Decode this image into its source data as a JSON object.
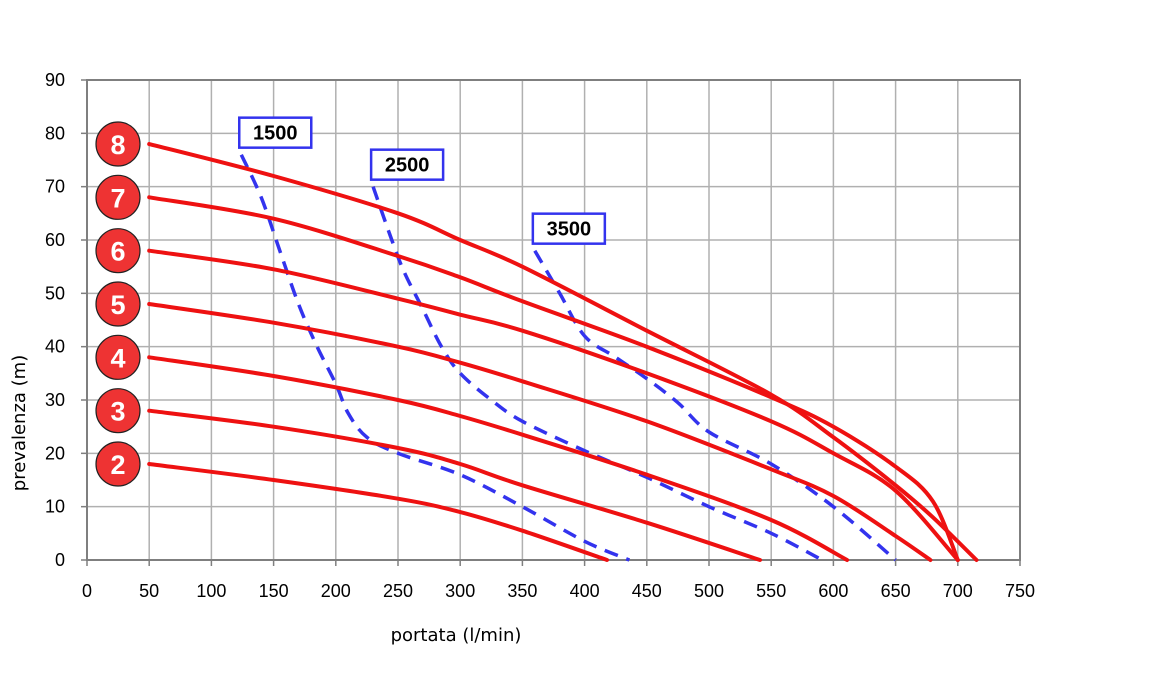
{
  "chart_data": {
    "type": "line",
    "xlabel": "portata (l/min)",
    "ylabel": "prevalenza (m)",
    "xlim": [
      0,
      750
    ],
    "ylim": [
      0,
      90
    ],
    "x_ticks": [
      "0",
      "50",
      "100",
      "150",
      "200",
      "250",
      "300",
      "350",
      "400",
      "450",
      "500",
      "550",
      "600",
      "650",
      "700",
      "750"
    ],
    "y_ticks": [
      "0",
      "10",
      "20",
      "30",
      "40",
      "50",
      "60",
      "70",
      "80",
      "90"
    ],
    "grid": true,
    "colors": {
      "pump_curve": "#ee1111",
      "speed_curve": "#3333ee",
      "badge": "#ee3333"
    },
    "pump_curves": [
      {
        "label": "2",
        "points": [
          [
            50,
            18
          ],
          [
            150,
            15
          ],
          [
            250,
            11.5
          ],
          [
            300,
            9
          ],
          [
            350,
            5.5
          ],
          [
            418,
            0
          ]
        ]
      },
      {
        "label": "3",
        "points": [
          [
            50,
            28
          ],
          [
            150,
            25
          ],
          [
            250,
            21
          ],
          [
            300,
            18
          ],
          [
            350,
            14
          ],
          [
            450,
            7
          ],
          [
            541,
            0
          ]
        ]
      },
      {
        "label": "4",
        "points": [
          [
            50,
            38
          ],
          [
            150,
            34.5
          ],
          [
            250,
            30
          ],
          [
            300,
            27
          ],
          [
            350,
            23.5
          ],
          [
            450,
            16
          ],
          [
            550,
            7.5
          ],
          [
            611,
            0
          ]
        ]
      },
      {
        "label": "5",
        "points": [
          [
            50,
            48
          ],
          [
            150,
            44.5
          ],
          [
            250,
            40
          ],
          [
            300,
            37
          ],
          [
            350,
            33.5
          ],
          [
            450,
            26
          ],
          [
            550,
            17
          ],
          [
            600,
            12
          ],
          [
            650,
            4.5
          ],
          [
            678,
            0
          ]
        ]
      },
      {
        "label": "6",
        "points": [
          [
            50,
            58
          ],
          [
            150,
            54.5
          ],
          [
            250,
            49
          ],
          [
            300,
            46
          ],
          [
            350,
            43
          ],
          [
            450,
            35
          ],
          [
            550,
            26
          ],
          [
            600,
            20
          ],
          [
            650,
            13
          ],
          [
            700,
            0
          ]
        ]
      },
      {
        "label": "7",
        "points": [
          [
            50,
            68
          ],
          [
            150,
            64
          ],
          [
            250,
            57
          ],
          [
            300,
            53
          ],
          [
            350,
            48.5
          ],
          [
            450,
            40
          ],
          [
            550,
            30.5
          ],
          [
            600,
            25
          ],
          [
            650,
            17.5
          ],
          [
            680,
            11
          ],
          [
            700,
            0
          ]
        ]
      },
      {
        "label": "8",
        "points": [
          [
            50,
            78
          ],
          [
            150,
            72
          ],
          [
            250,
            65
          ],
          [
            300,
            60
          ],
          [
            350,
            55
          ],
          [
            450,
            43
          ],
          [
            550,
            31
          ],
          [
            600,
            23
          ],
          [
            650,
            14
          ],
          [
            680,
            8
          ],
          [
            715,
            0
          ]
        ]
      }
    ],
    "speed_curves": [
      {
        "label": "1500",
        "points": [
          [
            124,
            76
          ],
          [
            140,
            68
          ],
          [
            155,
            58
          ],
          [
            170,
            48
          ],
          [
            185,
            40
          ],
          [
            200,
            33
          ],
          [
            210,
            27.5
          ],
          [
            225,
            23
          ],
          [
            250,
            20
          ],
          [
            300,
            16
          ],
          [
            350,
            10
          ],
          [
            400,
            3.5
          ],
          [
            436,
            0
          ]
        ]
      },
      {
        "label": "2500",
        "points": [
          [
            230,
            70
          ],
          [
            245,
            60
          ],
          [
            255,
            54
          ],
          [
            270,
            47
          ],
          [
            285,
            40
          ],
          [
            300,
            35
          ],
          [
            325,
            30
          ],
          [
            350,
            26
          ],
          [
            400,
            20.5
          ],
          [
            450,
            15.5
          ],
          [
            500,
            10
          ],
          [
            550,
            5
          ],
          [
            591,
            0
          ]
        ]
      },
      {
        "label": "3500",
        "points": [
          [
            360,
            58
          ],
          [
            380,
            50
          ],
          [
            400,
            42
          ],
          [
            425,
            38
          ],
          [
            450,
            34
          ],
          [
            475,
            29.5
          ],
          [
            500,
            24
          ],
          [
            550,
            18
          ],
          [
            600,
            10
          ],
          [
            650,
            0
          ]
        ]
      }
    ]
  }
}
